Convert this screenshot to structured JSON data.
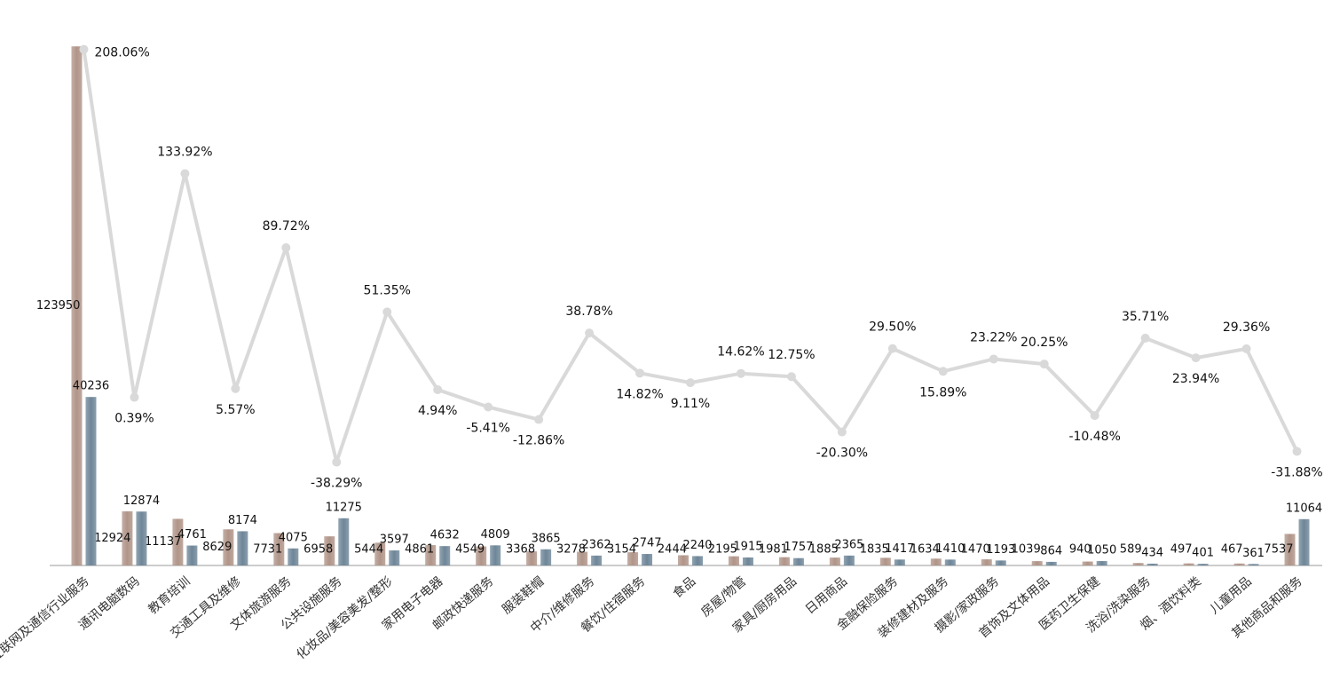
{
  "chart_data": {
    "type": "bar",
    "categories": [
      "互联网及通信行业服务",
      "通讯电脑数码",
      "教育培训",
      "交通工具及维修",
      "文体旅游服务",
      "公共设施服务",
      "化妆品/美容美发/整形",
      "家用电子电器",
      "邮政快递服务",
      "服装鞋帽",
      "中介/维修服务",
      "餐饮/住宿服务",
      "食品",
      "房屋/物管",
      "家具/厨房用品",
      "日用商品",
      "金融保险服务",
      "装修建材及服务",
      "摄影/家政服务",
      "首饰及文体用品",
      "医药卫生保健",
      "洗浴/洗染服务",
      "烟、酒饮料类",
      "儿童用品",
      "其他商品和服务"
    ],
    "series": [
      {
        "color": "#b09488",
        "values": [
          123950,
          12924,
          11137,
          8629,
          7731,
          6958,
          5444,
          4861,
          4549,
          3368,
          3278,
          3154,
          2444,
          2195,
          1981,
          1885,
          1835,
          1634,
          1470,
          1039,
          940,
          589,
          497,
          467,
          7537
        ]
      },
      {
        "color": "#6e8698",
        "values": [
          40236,
          12874,
          4761,
          8174,
          4075,
          11275,
          3597,
          4632,
          4809,
          3865,
          2362,
          2747,
          2240,
          1915,
          1757,
          2365,
          1417,
          1410,
          1193,
          864,
          1050,
          434,
          401,
          361,
          11064
        ]
      },
      {
        "type": "line",
        "axis": "y2",
        "color": "#d9d9d9",
        "values": [
          208.06,
          0.39,
          133.92,
          5.57,
          89.72,
          -38.29,
          51.35,
          4.94,
          -5.41,
          -12.86,
          38.78,
          14.82,
          9.11,
          14.62,
          12.75,
          -20.3,
          29.5,
          15.89,
          23.22,
          20.25,
          -10.48,
          35.71,
          23.94,
          29.36,
          -31.88
        ],
        "value_labels": [
          "208.06%",
          "0.39%",
          "133.92%",
          "5.57%",
          "89.72%",
          "-38.29%",
          "51.35%",
          "4.94%",
          "-5.41%",
          "-12.86%",
          "38.78%",
          "14.82%",
          "9.11%",
          "14.62%",
          "12.75%",
          "-20.30%",
          "29.50%",
          "15.89%",
          "23.22%",
          "20.25%",
          "-10.48%",
          "35.71%",
          "23.94%",
          "29.36%",
          "-31.88%"
        ]
      }
    ],
    "ylim": [
      0,
      124000
    ],
    "y2lim": [
      -100,
      210
    ]
  }
}
